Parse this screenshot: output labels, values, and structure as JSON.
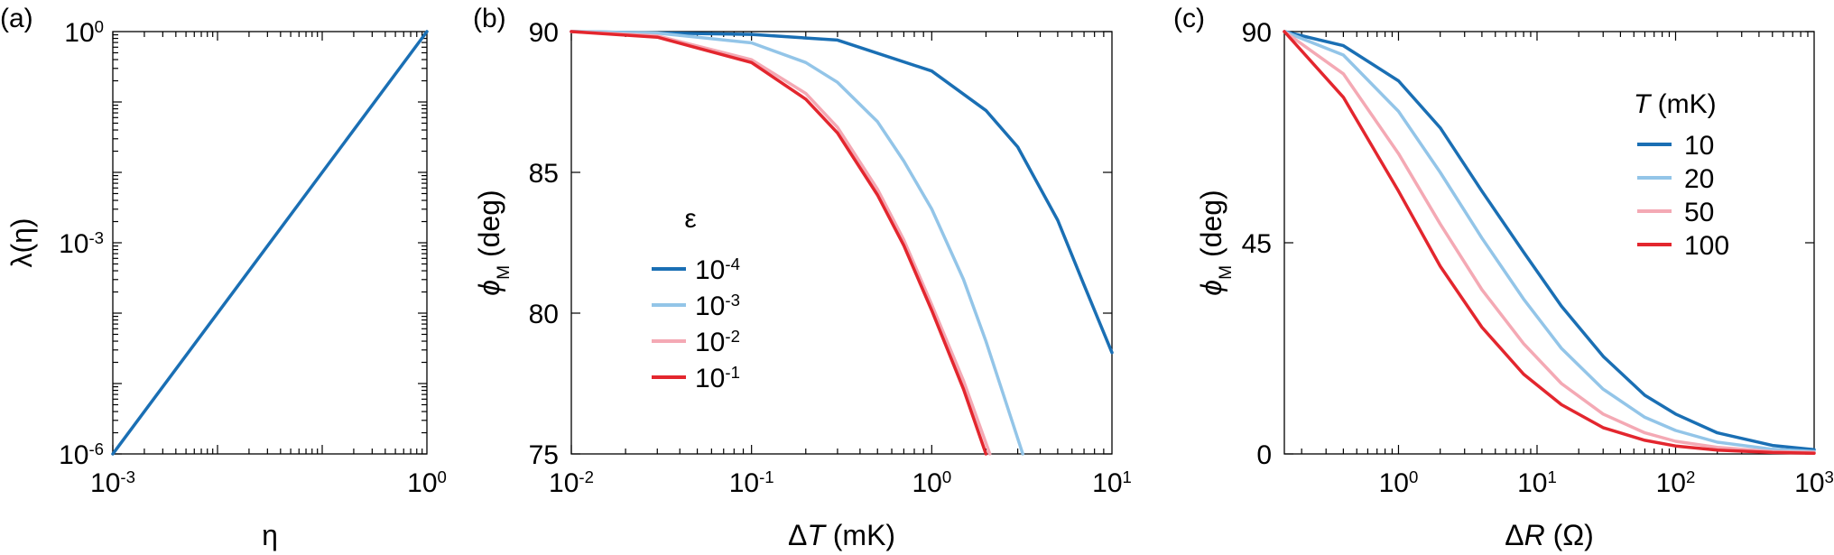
{
  "colors": {
    "dark_blue": "#1a6fb4",
    "light_blue": "#93c5e8",
    "pink": "#f4a9b4",
    "red": "#e3262e"
  },
  "chart_data": [
    {
      "panel_label": "(a)",
      "type": "line",
      "xscale": "log",
      "yscale": "log",
      "xlim": [
        0.001,
        1
      ],
      "ylim": [
        1e-06,
        1
      ],
      "xlabel": "η",
      "ylabel": "λ(η)",
      "xticks": [
        {
          "value": 0.001,
          "base": "10",
          "exp": "-3"
        },
        {
          "value": 1,
          "base": "10",
          "exp": "0"
        }
      ],
      "yticks": [
        {
          "value": 1e-06,
          "base": "10",
          "exp": "-6"
        },
        {
          "value": 0.001,
          "base": "10",
          "exp": "-3"
        },
        {
          "value": 1,
          "base": "10",
          "exp": "0"
        }
      ],
      "series": [
        {
          "color": "#1a6fb4",
          "x": [
            0.001,
            1
          ],
          "y": [
            1e-06,
            1
          ]
        }
      ]
    },
    {
      "panel_label": "(b)",
      "type": "line",
      "xscale": "log",
      "yscale": "linear",
      "xlim": [
        0.01,
        10
      ],
      "ylim": [
        75,
        90
      ],
      "xlabel": "ΔT (mK)",
      "xlabel_parts": {
        "pre": "Δ",
        "italic": "T",
        "post": " (mK)"
      },
      "ylabel_parts": {
        "symbol": "ϕ",
        "sub": "M",
        "unit": "(deg)"
      },
      "xticks": [
        {
          "value": 0.01,
          "base": "10",
          "exp": "-2"
        },
        {
          "value": 0.1,
          "base": "10",
          "exp": "-1"
        },
        {
          "value": 1,
          "base": "10",
          "exp": "0"
        },
        {
          "value": 10,
          "base": "10",
          "exp": "1"
        }
      ],
      "yticks": [
        {
          "value": 75,
          "label": "75"
        },
        {
          "value": 80,
          "label": "80"
        },
        {
          "value": 85,
          "label": "85"
        },
        {
          "value": 90,
          "label": "90"
        }
      ],
      "legend": {
        "title": "ε",
        "placement": "center-left"
      },
      "series": [
        {
          "name_base": "10",
          "name_exp": "-4",
          "color": "#1a6fb4",
          "x": [
            0.01,
            0.1,
            0.3,
            1,
            2,
            3,
            5,
            7,
            10
          ],
          "y": [
            90,
            89.9,
            89.7,
            88.6,
            87.2,
            85.9,
            83.3,
            81.0,
            78.6
          ]
        },
        {
          "name_base": "10",
          "name_exp": "-3",
          "color": "#93c5e8",
          "x": [
            0.01,
            0.03,
            0.1,
            0.2,
            0.3,
            0.5,
            0.7,
            1,
            1.5,
            2,
            2.5,
            3.2
          ],
          "y": [
            90,
            89.95,
            89.6,
            88.9,
            88.2,
            86.8,
            85.4,
            83.7,
            81.2,
            79.0,
            77.1,
            75.0
          ]
        },
        {
          "name_base": "10",
          "name_exp": "-2",
          "color": "#f4a9b4",
          "x": [
            0.01,
            0.03,
            0.1,
            0.2,
            0.3,
            0.5,
            0.7,
            1,
            1.5,
            2.1
          ],
          "y": [
            90,
            89.85,
            89.0,
            87.8,
            86.6,
            84.4,
            82.6,
            80.3,
            77.6,
            75.0
          ]
        },
        {
          "name_base": "10",
          "name_exp": "-1",
          "color": "#e3262e",
          "x": [
            0.01,
            0.03,
            0.1,
            0.2,
            0.3,
            0.5,
            0.7,
            1,
            1.5,
            2.0
          ],
          "y": [
            90,
            89.8,
            88.9,
            87.6,
            86.4,
            84.2,
            82.4,
            80.1,
            77.3,
            75.0
          ]
        }
      ]
    },
    {
      "panel_label": "(c)",
      "type": "line",
      "xscale": "log",
      "yscale": "linear",
      "xlim": [
        0.15,
        1000
      ],
      "ylim": [
        0,
        90
      ],
      "xlabel": "ΔR (Ω)",
      "xlabel_parts": {
        "pre": "Δ",
        "italic": "R",
        "post": " (Ω)"
      },
      "ylabel_parts": {
        "symbol": "ϕ",
        "sub": "M",
        "unit": "(deg)"
      },
      "xticks": [
        {
          "value": 1,
          "base": "10",
          "exp": "0"
        },
        {
          "value": 10,
          "base": "10",
          "exp": "1"
        },
        {
          "value": 100,
          "base": "10",
          "exp": "2"
        },
        {
          "value": 1000,
          "base": "10",
          "exp": "3"
        }
      ],
      "yticks": [
        {
          "value": 0,
          "label": "0"
        },
        {
          "value": 45,
          "label": "45"
        },
        {
          "value": 90,
          "label": "90"
        }
      ],
      "legend": {
        "title_italic": "T",
        "title_rest": " (mK)",
        "placement": "top-right"
      },
      "series": [
        {
          "name": "10",
          "color": "#1a6fb4",
          "x": [
            0.15,
            0.4,
            1,
            2,
            4,
            8,
            15,
            30,
            60,
            100,
            200,
            500,
            1000
          ],
          "y": [
            90,
            87,
            79.5,
            69.5,
            56,
            43,
            31.5,
            20.8,
            12.5,
            8.5,
            4.5,
            1.8,
            0.9
          ]
        },
        {
          "name": "20",
          "color": "#93c5e8",
          "x": [
            0.15,
            0.4,
            1,
            2,
            4,
            8,
            15,
            30,
            60,
            100,
            200,
            500,
            1000
          ],
          "y": [
            90,
            85,
            73,
            60,
            46,
            33,
            22.5,
            13.8,
            7.8,
            5.0,
            2.5,
            1.0,
            0.5
          ]
        },
        {
          "name": "50",
          "color": "#f4a9b4",
          "x": [
            0.15,
            0.4,
            1,
            2,
            4,
            8,
            15,
            30,
            60,
            100,
            200,
            500,
            1000
          ],
          "y": [
            90,
            81,
            64,
            49,
            35,
            23.5,
            15,
            8.5,
            4.5,
            2.7,
            1.4,
            0.5,
            0.3
          ]
        },
        {
          "name": "100",
          "color": "#e3262e",
          "x": [
            0.15,
            0.4,
            1,
            2,
            4,
            8,
            15,
            30,
            60,
            100,
            200,
            500,
            1000
          ],
          "y": [
            90,
            76,
            56,
            40,
            27,
            17,
            10.5,
            5.6,
            2.9,
            1.7,
            0.8,
            0.3,
            0.15
          ]
        }
      ]
    }
  ]
}
